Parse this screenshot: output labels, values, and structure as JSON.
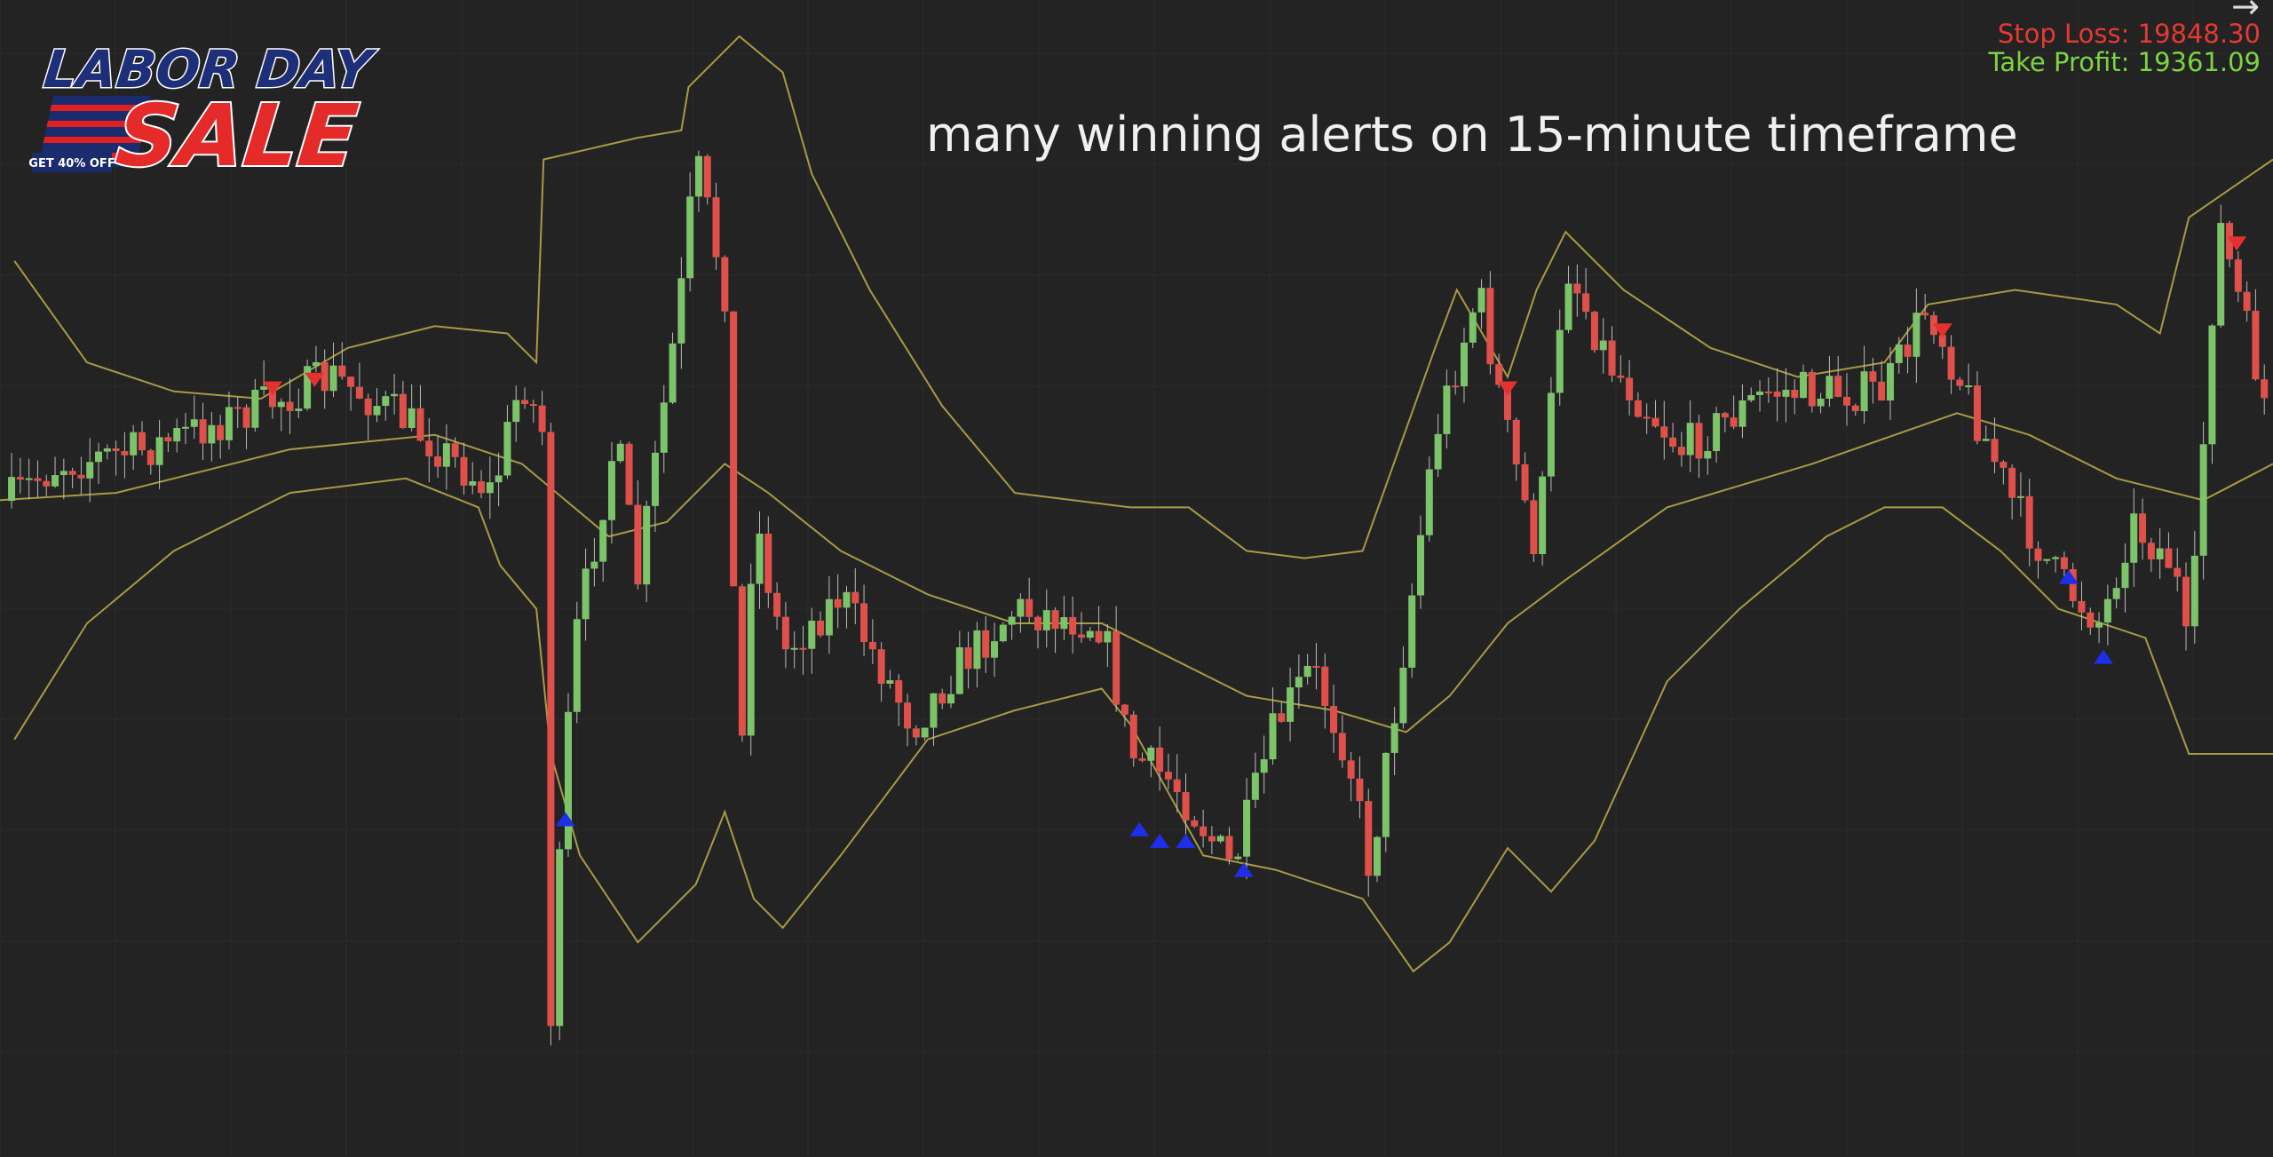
{
  "header": {
    "title": "many winning alerts on 15-minute timeframe"
  },
  "logo": {
    "line1": "LABOR DAY",
    "line2": "SALE",
    "badge": "GET 40% OFF"
  },
  "info": {
    "arrow": "→",
    "stop_loss": "Stop Loss: 19848.30",
    "take_profit": "Take Profit: 19361.09"
  }
}
